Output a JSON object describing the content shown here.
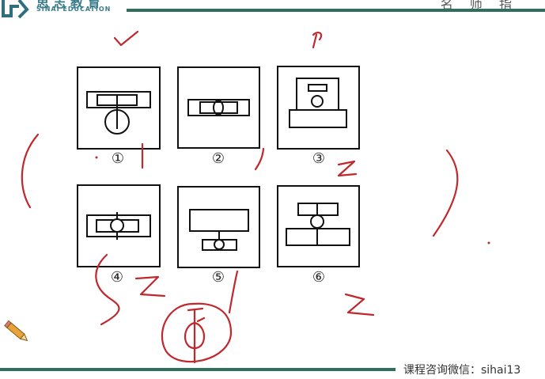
{
  "header": {
    "brand_name": "思 志 教 育",
    "brand_sub": "SINAI EDUCATION",
    "right_text": "名 师 指"
  },
  "figure_labels": [
    "①",
    "②",
    "③",
    "④",
    "⑤",
    "⑥"
  ],
  "footer": {
    "contact": "课程咨询微信：sihai13"
  },
  "colors": {
    "accent": "#2f6f5e",
    "annotation": "#c0282d",
    "line": "#111111"
  }
}
